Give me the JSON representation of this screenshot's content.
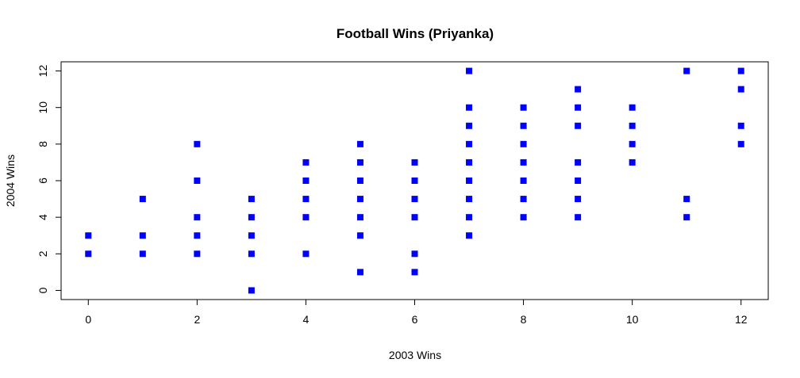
{
  "chart_data": {
    "type": "scatter",
    "title": "Football Wins (Priyanka)",
    "xlabel": "2003 Wins",
    "ylabel": "2004 Wins",
    "xlim": [
      -0.5,
      12.5
    ],
    "ylim": [
      -0.5,
      12.5
    ],
    "x_ticks": [
      0,
      2,
      4,
      6,
      8,
      10,
      12
    ],
    "y_ticks": [
      0,
      2,
      4,
      6,
      8,
      10,
      12
    ],
    "grid": false,
    "marker": "square",
    "point_color": "#0000ff",
    "points": [
      [
        0,
        2
      ],
      [
        0,
        3
      ],
      [
        1,
        2
      ],
      [
        1,
        3
      ],
      [
        1,
        5
      ],
      [
        2,
        2
      ],
      [
        2,
        3
      ],
      [
        2,
        4
      ],
      [
        2,
        6
      ],
      [
        2,
        8
      ],
      [
        3,
        0
      ],
      [
        3,
        2
      ],
      [
        3,
        3
      ],
      [
        3,
        4
      ],
      [
        3,
        5
      ],
      [
        4,
        2
      ],
      [
        4,
        4
      ],
      [
        4,
        5
      ],
      [
        4,
        6
      ],
      [
        4,
        7
      ],
      [
        5,
        1
      ],
      [
        5,
        3
      ],
      [
        5,
        4
      ],
      [
        5,
        5
      ],
      [
        5,
        6
      ],
      [
        5,
        7
      ],
      [
        5,
        8
      ],
      [
        6,
        1
      ],
      [
        6,
        2
      ],
      [
        6,
        4
      ],
      [
        6,
        5
      ],
      [
        6,
        6
      ],
      [
        6,
        7
      ],
      [
        7,
        3
      ],
      [
        7,
        4
      ],
      [
        7,
        5
      ],
      [
        7,
        6
      ],
      [
        7,
        7
      ],
      [
        7,
        8
      ],
      [
        7,
        9
      ],
      [
        7,
        10
      ],
      [
        7,
        12
      ],
      [
        8,
        4
      ],
      [
        8,
        5
      ],
      [
        8,
        6
      ],
      [
        8,
        7
      ],
      [
        8,
        8
      ],
      [
        8,
        9
      ],
      [
        8,
        10
      ],
      [
        9,
        4
      ],
      [
        9,
        5
      ],
      [
        9,
        6
      ],
      [
        9,
        7
      ],
      [
        9,
        9
      ],
      [
        9,
        10
      ],
      [
        9,
        11
      ],
      [
        10,
        7
      ],
      [
        10,
        8
      ],
      [
        10,
        9
      ],
      [
        10,
        10
      ],
      [
        11,
        4
      ],
      [
        11,
        5
      ],
      [
        11,
        12
      ],
      [
        12,
        8
      ],
      [
        12,
        9
      ],
      [
        12,
        11
      ],
      [
        12,
        12
      ]
    ]
  }
}
